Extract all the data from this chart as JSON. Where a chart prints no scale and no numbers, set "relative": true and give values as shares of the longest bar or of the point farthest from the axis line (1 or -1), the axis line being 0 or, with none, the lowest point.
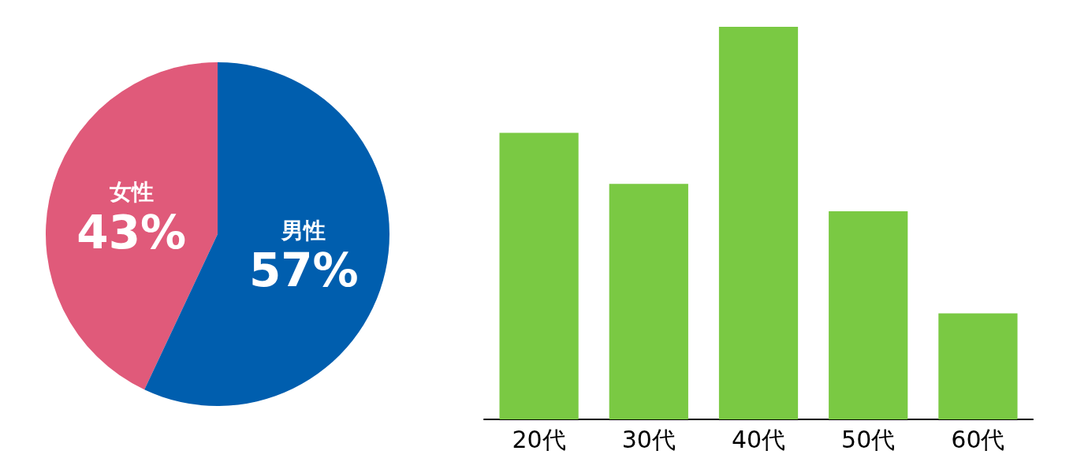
{
  "chart_data": [
    {
      "type": "pie",
      "categories": [
        "女性",
        "男性"
      ],
      "values": [
        43,
        57
      ],
      "colors": [
        "#e05a7a",
        "#005eae"
      ],
      "value_labels": [
        "43%",
        "57%"
      ]
    },
    {
      "type": "bar",
      "relative": true,
      "categories": [
        "20代",
        "30代",
        "40代",
        "50代",
        "60代"
      ],
      "values": [
        0.73,
        0.6,
        1,
        0.53,
        0.27
      ],
      "color": "#7ac943"
    }
  ]
}
